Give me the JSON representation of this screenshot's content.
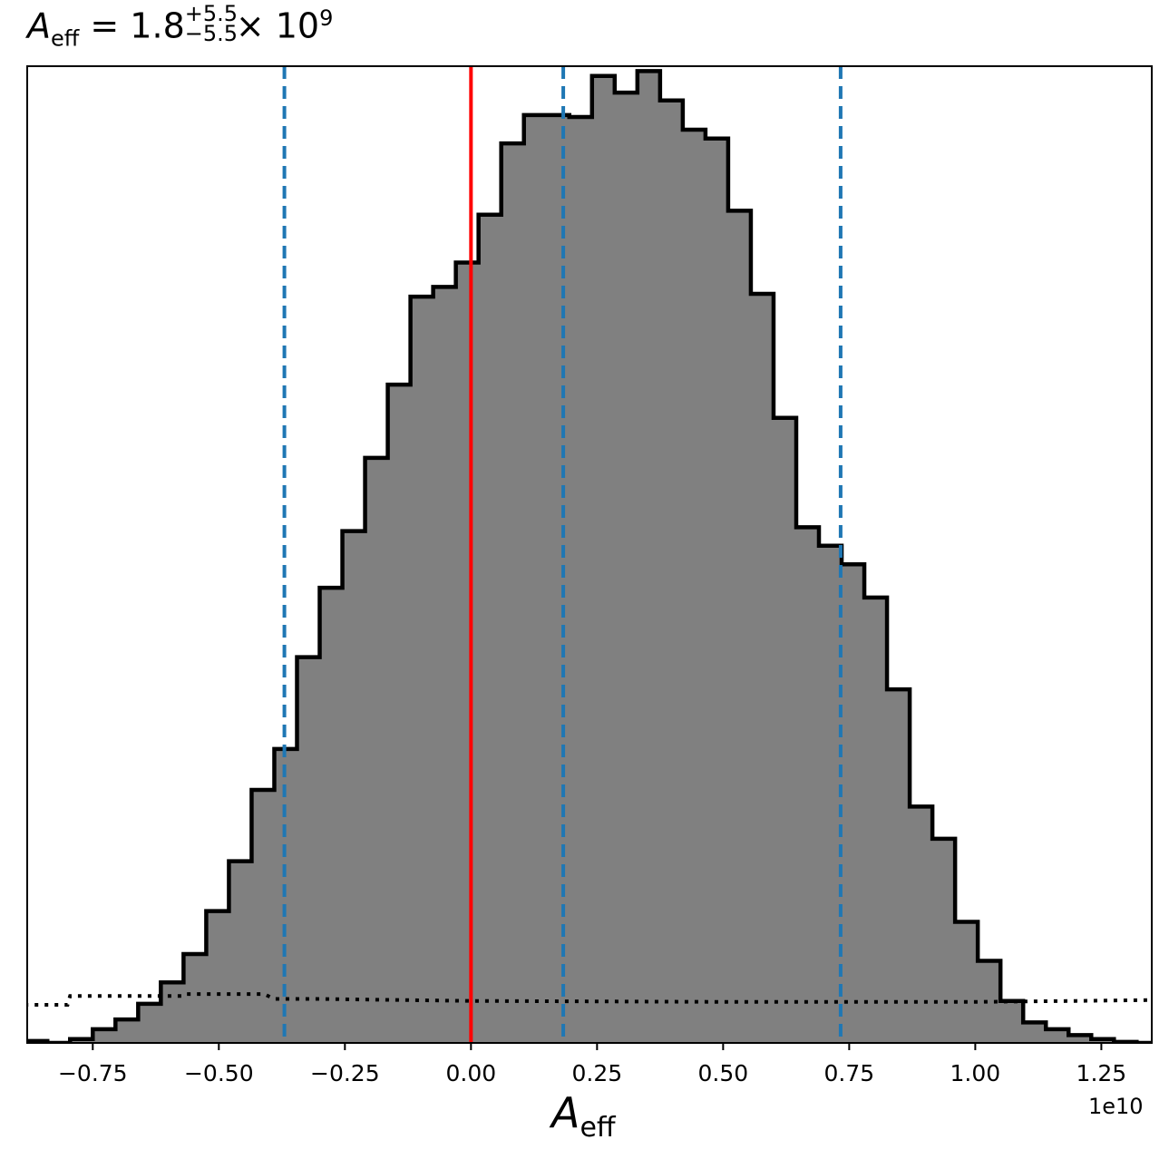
{
  "title": {
    "symbol": "A",
    "subscript": "eff",
    "equals": " = 1.8",
    "upper": "+5.5",
    "lower": "−5.5",
    "times": " × 10",
    "exponent": "9"
  },
  "chart_data": {
    "type": "histogram",
    "xlabel_symbol": "A",
    "xlabel_subscript": "eff",
    "offset_label": "1e10",
    "xlim": [
      -0.88,
      1.35
    ],
    "xticks": [
      -0.75,
      -0.5,
      -0.25,
      0.0,
      0.25,
      0.5,
      0.75,
      1.0,
      1.25
    ],
    "xtick_labels": [
      "−0.75",
      "−0.50",
      "−0.25",
      "0.00",
      "0.25",
      "0.50",
      "0.75",
      "1.00",
      "1.25"
    ],
    "y_ticks_visible": false,
    "bin_edges": [
      -0.885,
      -0.84,
      -0.795,
      -0.75,
      -0.705,
      -0.66,
      -0.615,
      -0.57,
      -0.525,
      -0.48,
      -0.435,
      -0.39,
      -0.345,
      -0.3,
      -0.255,
      -0.21,
      -0.165,
      -0.12,
      -0.075,
      -0.03,
      0.015,
      0.06,
      0.105,
      0.15,
      0.195,
      0.24,
      0.285,
      0.33,
      0.375,
      0.42,
      0.465,
      0.51,
      0.555,
      0.6,
      0.645,
      0.69,
      0.735,
      0.78,
      0.825,
      0.87,
      0.915,
      0.96,
      1.005,
      1.05,
      1.095,
      1.14,
      1.185,
      1.23,
      1.275,
      1.32,
      1.365
    ],
    "counts": [
      0.2,
      0.0,
      0.4,
      1.4,
      2.4,
      4.0,
      6.2,
      9.1,
      13.5,
      18.6,
      25.9,
      30.1,
      39.5,
      46.6,
      52.4,
      59.9,
      67.4,
      76.4,
      77.4,
      79.9,
      84.8,
      92.1,
      95.0,
      95.0,
      94.8,
      99.0,
      97.3,
      99.5,
      96.5,
      93.5,
      92.6,
      85.2,
      76.7,
      64.0,
      52.8,
      50.9,
      49.0,
      45.6,
      36.2,
      24.2,
      20.9,
      12.4,
      8.4,
      4.3,
      2.1,
      1.4,
      0.8,
      0.4,
      0.1,
      0.0
    ],
    "ymax": 100,
    "prior_line": {
      "style": "dotted",
      "x": [
        -0.885,
        -0.8,
        -0.795,
        -0.57,
        -0.565,
        -0.41,
        -0.39,
        -0.3,
        0.0,
        0.5,
        1.0,
        1.2,
        1.365
      ],
      "y": [
        3.9,
        3.9,
        4.8,
        4.8,
        5.0,
        5.0,
        4.5,
        4.5,
        4.3,
        4.2,
        4.2,
        4.3,
        4.4
      ]
    },
    "vlines": [
      {
        "x": 0.0,
        "color": "#ff0000",
        "style": "solid"
      },
      {
        "x": -0.37,
        "color": "#1f77b4",
        "style": "dashed"
      },
      {
        "x": 0.183,
        "color": "#1f77b4",
        "style": "dashed"
      },
      {
        "x": 0.733,
        "color": "#1f77b4",
        "style": "dashed"
      }
    ],
    "fill_color": "#808080",
    "edge_color": "#000000"
  }
}
